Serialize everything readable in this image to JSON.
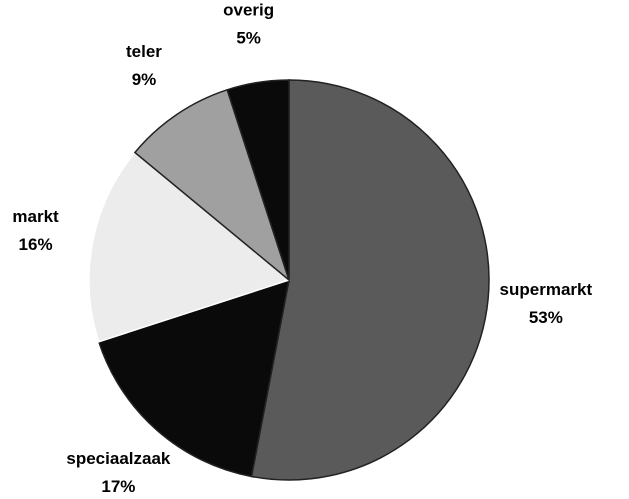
{
  "chart_data": {
    "type": "pie",
    "categories": [
      "supermarkt",
      "speciaalzaak",
      "markt",
      "teler",
      "overig"
    ],
    "values": [
      53,
      17,
      16,
      9,
      5
    ],
    "value_labels": [
      "53%",
      "17%",
      "16%",
      "9%",
      "5%"
    ],
    "colors": [
      "#5a5a5a",
      "#0a0a0a",
      "#ececec",
      "#a0a0a0",
      "#0a0a0a"
    ]
  }
}
